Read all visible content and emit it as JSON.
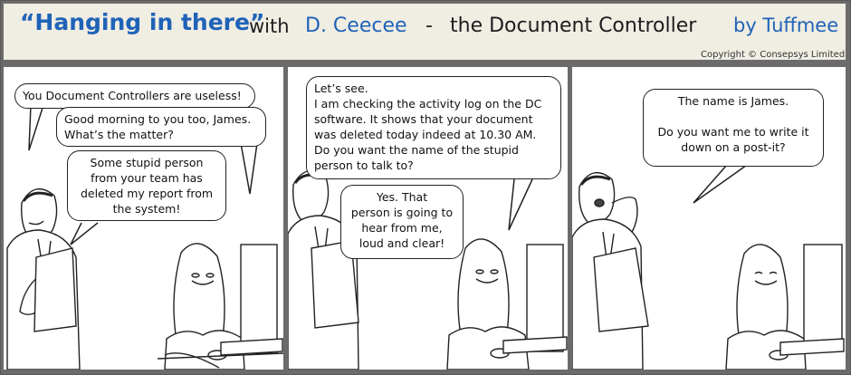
{
  "header": {
    "title": "“Hanging in there”",
    "with": "with",
    "character": "D. Ceecee",
    "dash": "-",
    "subtitle": "the Document Controller",
    "author": "by Tuffmee",
    "copyright": "Copyright © Consepsys Limited"
  },
  "colors": {
    "title_blue": "#1f63b7",
    "frame_gray": "#6b6b6b",
    "title_bg": "#f0ede3"
  },
  "panels": [
    {
      "bubbles": [
        "You Document Controllers are useless!",
        "Good morning to you too, James.\nWhat’s the matter?",
        "Some stupid person\nfrom your team has\ndeleted my report from\nthe system!"
      ]
    },
    {
      "bubbles": [
        "Let’s see.\nI am checking the activity log on the DC\nsoftware. It shows that your document\nwas deleted today indeed at 10.30 AM.\nDo you want the name of the stupid\nperson to talk to?",
        "Yes. That\nperson is going to\nhear from me,\nloud and clear!"
      ]
    },
    {
      "bubbles": [
        "The name is James.\n\nDo you want me to write it\ndown on a post-it?"
      ]
    }
  ]
}
